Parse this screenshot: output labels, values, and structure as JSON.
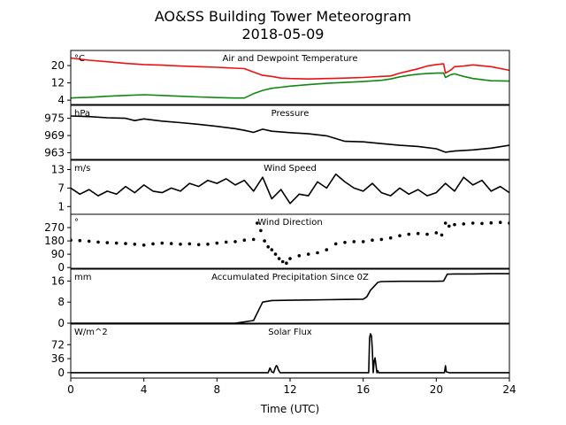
{
  "figure": {
    "title": "AO&SS Building Tower Meteorogram",
    "subtitle": "2018-05-09",
    "xlabel": "Time (UTC)"
  },
  "colors": {
    "temperature": "#ee1111",
    "dewpoint": "#118811",
    "line": "#000000",
    "axes": "#000000",
    "background": "#ffffff"
  },
  "chart_data": {
    "type": "line",
    "x_axis": {
      "xlim": [
        0,
        24
      ],
      "ticks": [
        0,
        4,
        8,
        12,
        16,
        20,
        24
      ],
      "tick_labels": [
        "0",
        "4",
        "8",
        "12",
        "16",
        "20",
        "24"
      ]
    },
    "panels": [
      {
        "title": "Air and Dewpoint Temperature",
        "unit": "°C",
        "ylim": [
          2,
          27
        ],
        "yticks": [
          4,
          12,
          20
        ],
        "series": [
          {
            "kind": "line",
            "color": "#ee1111",
            "x": [
              0,
              0.5,
              1,
              2,
              3,
              4,
              5,
              6,
              7,
              8,
              9,
              9.5,
              10,
              10.5,
              11,
              11.5,
              12,
              13,
              14,
              15,
              16,
              17,
              17.5,
              18,
              18.5,
              19,
              19.5,
              20,
              20.4,
              20.5,
              20.8,
              21,
              21.5,
              22,
              23,
              24
            ],
            "y": [
              23.5,
              23,
              22.5,
              21.8,
              21,
              20.5,
              20.2,
              19.8,
              19.5,
              19.2,
              18.8,
              18.6,
              17,
              15.5,
              15,
              14.2,
              14,
              13.8,
              14,
              14.2,
              14.5,
              15,
              15.2,
              16.5,
              17.5,
              18.5,
              19.8,
              20.5,
              20.8,
              16.5,
              18,
              19.5,
              19.8,
              20.3,
              19.5,
              17.8
            ]
          },
          {
            "kind": "line",
            "color": "#118811",
            "x": [
              0,
              0.5,
              1,
              2,
              3,
              4,
              5,
              6,
              7,
              8,
              9,
              9.5,
              10,
              10.5,
              11,
              11.5,
              12,
              13,
              14,
              15,
              16,
              17,
              17.5,
              18,
              18.5,
              19,
              19.5,
              20,
              20.4,
              20.5,
              20.8,
              21,
              21.5,
              22,
              23,
              24
            ],
            "y": [
              5,
              5.2,
              5.3,
              5.8,
              6.2,
              6.5,
              6.2,
              5.8,
              5.5,
              5.2,
              5,
              5,
              7,
              8.5,
              9.5,
              10,
              10.5,
              11.2,
              11.8,
              12.2,
              12.6,
              13.2,
              13.8,
              14.8,
              15.5,
              16,
              16.3,
              16.5,
              16.6,
              14.5,
              15.8,
              16.2,
              15,
              14,
              13,
              12.8
            ]
          }
        ]
      },
      {
        "title": "Pressure",
        "unit": "hPa",
        "ylim": [
          960.7,
          979.5
        ],
        "yticks": [
          963,
          969,
          975
        ],
        "series": [
          {
            "kind": "line",
            "color": "#000000",
            "x": [
              0,
              1,
              2,
              3,
              3.5,
              4,
              5,
              6,
              7,
              8,
              9,
              9.5,
              10,
              10.5,
              11,
              12,
              13,
              14,
              15,
              16,
              17,
              18,
              19,
              20,
              20.5,
              21,
              22,
              23,
              24
            ],
            "y": [
              975.8,
              975.6,
              975.2,
              975,
              974.2,
              974.8,
              974,
              973.5,
              972.9,
              972.2,
              971.4,
              970.8,
              970.1,
              971.2,
              970.5,
              970,
              969.6,
              968.9,
              967,
              966.8,
              966.2,
              965.6,
              965.2,
              964.4,
              963.2,
              963.6,
              964,
              964.6,
              965.6
            ]
          }
        ]
      },
      {
        "title": "Wind Speed",
        "unit": "m/s",
        "ylim": [
          -1.5,
          16
        ],
        "yticks": [
          1,
          7,
          13
        ],
        "series": [
          {
            "kind": "line",
            "color": "#000000",
            "x": [
              0,
              0.5,
              1,
              1.5,
              2,
              2.5,
              3,
              3.5,
              4,
              4.5,
              5,
              5.5,
              6,
              6.5,
              7,
              7.5,
              8,
              8.5,
              9,
              9.5,
              10,
              10.5,
              11,
              11.5,
              12,
              12.5,
              13,
              13.5,
              14,
              14.5,
              15,
              15.5,
              16,
              16.5,
              17,
              17.5,
              18,
              18.5,
              19,
              19.5,
              20,
              20.5,
              21,
              21.5,
              22,
              22.5,
              23,
              23.5,
              24
            ],
            "y": [
              7,
              5,
              6.5,
              4.5,
              6,
              5,
              7.5,
              5.5,
              8,
              6,
              5.5,
              7,
              6,
              8.5,
              7.5,
              9.5,
              8.5,
              10,
              8,
              9.5,
              6,
              10.5,
              3.5,
              6.5,
              2,
              5,
              4.5,
              9,
              7,
              11.5,
              9,
              7,
              6,
              8.5,
              5.5,
              4.5,
              7,
              5,
              6.5,
              4.5,
              5.5,
              8.5,
              6,
              10.5,
              8,
              9.5,
              6,
              7.5,
              5.5
            ]
          }
        ]
      },
      {
        "title": "Wind Direction",
        "unit": "°",
        "ylim": [
          -5,
          360
        ],
        "yticks": [
          0,
          90,
          180,
          270
        ],
        "series": [
          {
            "kind": "scatter",
            "color": "#000000",
            "x": [
              0,
              0.5,
              1,
              1.5,
              2,
              2.5,
              3,
              3.5,
              4,
              4.5,
              5,
              5.5,
              6,
              6.5,
              7,
              7.5,
              8,
              8.5,
              9,
              9.5,
              10,
              10.2,
              10.4,
              10.6,
              10.8,
              11,
              11.2,
              11.4,
              11.6,
              11.8,
              12,
              12.5,
              13,
              13.5,
              14,
              14.5,
              15,
              15.5,
              16,
              16.5,
              17,
              17.5,
              18,
              18.5,
              19,
              19.5,
              20,
              20.3,
              20.5,
              20.7,
              21,
              21.5,
              22,
              22.5,
              23,
              23.5,
              24
            ],
            "y": [
              185,
              182,
              178,
              172,
              168,
              165,
              162,
              158,
              152,
              160,
              165,
              162,
              158,
              160,
              155,
              158,
              165,
              172,
              175,
              185,
              190,
              300,
              250,
              180,
              140,
              120,
              90,
              60,
              40,
              30,
              60,
              80,
              90,
              100,
              120,
              160,
              170,
              175,
              175,
              185,
              190,
              200,
              215,
              225,
              230,
              225,
              235,
              220,
              300,
              280,
              290,
              295,
              300,
              298,
              302,
              305,
              300
            ]
          }
        ]
      },
      {
        "title": "Accumulated Precipitation Since 0Z",
        "unit": "mm",
        "ylim": [
          0,
          20.5
        ],
        "yticks": [
          0,
          8,
          16
        ],
        "series": [
          {
            "kind": "line",
            "color": "#000000",
            "x": [
              0,
              9,
              9.5,
              10,
              10.5,
              11,
              12,
              13,
              14,
              15,
              16,
              16.2,
              16.4,
              16.8,
              17,
              18,
              19,
              20,
              20.4,
              20.6,
              21,
              22,
              23,
              24
            ],
            "y": [
              0,
              0,
              0.5,
              1,
              8,
              8.6,
              8.7,
              8.8,
              8.9,
              9,
              9.1,
              10,
              12.5,
              15.5,
              15.8,
              15.9,
              15.9,
              15.9,
              16,
              18.6,
              18.7,
              18.7,
              18.8,
              18.8
            ]
          }
        ]
      },
      {
        "title": "Solar Flux",
        "unit": "W/m^2",
        "ylim": [
          -14,
          125
        ],
        "yticks": [
          0,
          36,
          72
        ],
        "series": [
          {
            "kind": "line",
            "color": "#000000",
            "x": [
              0,
              10.8,
              10.9,
              11,
              11.1,
              11.2,
              11.25,
              11.3,
              11.35,
              11.45,
              12,
              16,
              16.3,
              16.35,
              16.4,
              16.45,
              16.5,
              16.55,
              16.6,
              16.65,
              16.7,
              16.75,
              16.8,
              16.85,
              17,
              20,
              20.45,
              20.5,
              20.55,
              20.7,
              24
            ],
            "y": [
              0,
              0,
              12,
              2,
              0,
              14,
              18,
              16,
              8,
              0,
              0,
              0,
              0,
              90,
              100,
              95,
              60,
              0,
              30,
              38,
              20,
              0,
              5,
              0,
              0,
              0,
              0,
              18,
              2,
              0,
              0
            ]
          }
        ]
      }
    ]
  }
}
